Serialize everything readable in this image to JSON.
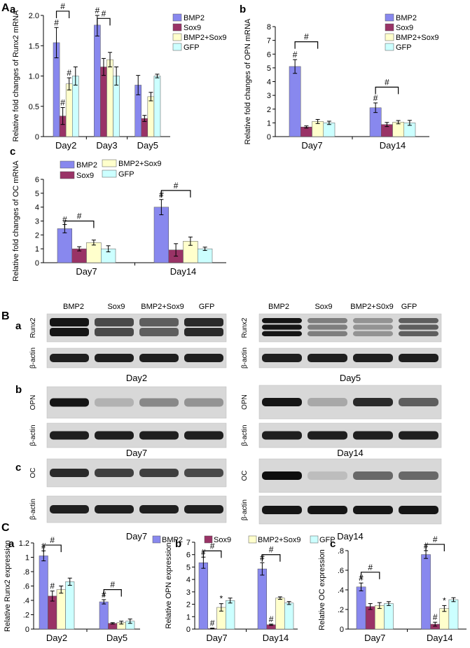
{
  "colors": {
    "BMP2": "#8888ee",
    "Sox9": "#993366",
    "BMP2+Sox9": "#ffffcc",
    "GFP": "#ccffff"
  },
  "section_labels": {
    "A": "A",
    "B": "B",
    "C": "C"
  },
  "chart_data": [
    {
      "id": "Aa",
      "panel": "a",
      "type": "bar",
      "ylabel": "Relative fold changes of Runx2 mRNA",
      "ylim": [
        0,
        2
      ],
      "yticks": [
        "0",
        "0.5",
        "1.0",
        "1.5",
        "2.0"
      ],
      "ytick_values": [
        0,
        0.5,
        1,
        1.5,
        2
      ],
      "categories": [
        "Day2",
        "Day3",
        "Day5"
      ],
      "series": [
        {
          "name": "BMP2",
          "values": [
            1.55,
            1.84,
            0.85
          ],
          "errors": [
            0.25,
            0.18,
            0.16
          ]
        },
        {
          "name": "Sox9",
          "values": [
            0.34,
            1.15,
            0.3
          ],
          "errors": [
            0.14,
            0.14,
            0.05
          ]
        },
        {
          "name": "BMP2+Sox9",
          "values": [
            0.87,
            1.27,
            0.66
          ],
          "errors": [
            0.1,
            0.12,
            0.07
          ]
        },
        {
          "name": "GFP",
          "values": [
            1.0,
            1.0,
            1.0
          ],
          "errors": [
            0.15,
            0.15,
            0.03
          ]
        }
      ],
      "annotations": [
        {
          "text": "#",
          "category": 0,
          "bar": 0
        },
        {
          "text": "#",
          "category": 0,
          "bar": 1
        },
        {
          "text": "#",
          "category": 0,
          "bar": 2
        },
        {
          "text": "#",
          "category": 1,
          "bar": 0
        }
      ],
      "brackets": [
        {
          "category": 0,
          "from": 0,
          "to": 2,
          "level": 2.07,
          "text": "#"
        },
        {
          "category": 1,
          "from": 0,
          "to": 2,
          "level": 1.95,
          "text": "#"
        }
      ],
      "legend": "right"
    },
    {
      "id": "Ab",
      "panel": "b",
      "type": "bar",
      "ylabel": "Relative fold changes of OPN mRNA",
      "ylim": [
        0,
        8
      ],
      "yticks": [
        "0",
        "1",
        "2",
        "3",
        "4",
        "5",
        "6",
        "7",
        "8"
      ],
      "ytick_values": [
        0,
        1,
        2,
        3,
        4,
        5,
        6,
        7,
        8
      ],
      "categories": [
        "Day7",
        "Day14"
      ],
      "series": [
        {
          "name": "BMP2",
          "values": [
            5.1,
            2.1
          ],
          "errors": [
            0.5,
            0.35
          ]
        },
        {
          "name": "Sox9",
          "values": [
            0.7,
            0.88
          ],
          "errors": [
            0.08,
            0.15
          ]
        },
        {
          "name": "BMP2+Sox9",
          "values": [
            1.1,
            1.05
          ],
          "errors": [
            0.15,
            0.12
          ]
        },
        {
          "name": "GFP",
          "values": [
            1.0,
            1.0
          ],
          "errors": [
            0.12,
            0.18
          ]
        }
      ],
      "annotations": [
        {
          "text": "#",
          "category": 0,
          "bar": 0
        },
        {
          "text": "#",
          "category": 1,
          "bar": 0
        }
      ],
      "brackets": [
        {
          "category": 0,
          "from": 0,
          "to": 2,
          "level": 6.9,
          "text": "#"
        },
        {
          "category": 1,
          "from": 0,
          "to": 2,
          "level": 3.6,
          "text": "#"
        }
      ],
      "legend": "top-right"
    },
    {
      "id": "Ac",
      "panel": "c",
      "type": "bar",
      "ylabel": "Relative fold changes of OC mRNA",
      "ylim": [
        0,
        6
      ],
      "yticks": [
        "0",
        "1",
        "2",
        "3",
        "4",
        "5",
        "6"
      ],
      "ytick_values": [
        0,
        1,
        2,
        3,
        4,
        5,
        6
      ],
      "categories": [
        "Day7",
        "Day14"
      ],
      "series": [
        {
          "name": "BMP2",
          "values": [
            2.45,
            4.0
          ],
          "errors": [
            0.3,
            0.55
          ]
        },
        {
          "name": "Sox9",
          "values": [
            1.0,
            0.92
          ],
          "errors": [
            0.15,
            0.45
          ]
        },
        {
          "name": "BMP2+Sox9",
          "values": [
            1.45,
            1.55
          ],
          "errors": [
            0.18,
            0.3
          ]
        },
        {
          "name": "GFP",
          "values": [
            1.0,
            1.0
          ],
          "errors": [
            0.22,
            0.12
          ]
        }
      ],
      "annotations": [
        {
          "text": "#",
          "category": 0,
          "bar": 0
        },
        {
          "text": "#",
          "category": 1,
          "bar": 0
        }
      ],
      "brackets": [
        {
          "category": 0,
          "from": 0,
          "to": 2,
          "level": 3.0,
          "text": "#"
        },
        {
          "category": 1,
          "from": 0,
          "to": 2,
          "level": 5.2,
          "text": "#"
        }
      ],
      "legend": "top-left"
    },
    {
      "id": "Ca",
      "panel": "a",
      "type": "bar",
      "ylabel": "Relative Runx2 expression",
      "ylim": [
        0,
        1.2
      ],
      "yticks": [
        "0",
        ".2",
        ".4",
        ".6",
        ".8",
        "1",
        "1.2"
      ],
      "ytick_values": [
        0,
        0.2,
        0.4,
        0.6,
        0.8,
        1.0,
        1.2
      ],
      "categories": [
        "Day2",
        "Day5"
      ],
      "series": [
        {
          "name": "BMP2",
          "values": [
            1.02,
            0.38
          ],
          "errors": [
            0.07,
            0.03
          ]
        },
        {
          "name": "Sox9",
          "values": [
            0.46,
            0.08
          ],
          "errors": [
            0.07,
            0.01
          ]
        },
        {
          "name": "BMP2+Sox9",
          "values": [
            0.55,
            0.09
          ],
          "errors": [
            0.05,
            0.02
          ]
        },
        {
          "name": "GFP",
          "values": [
            0.66,
            0.11
          ],
          "errors": [
            0.05,
            0.03
          ]
        }
      ],
      "annotations": [
        {
          "text": "#",
          "category": 0,
          "bar": 0
        },
        {
          "text": "#",
          "category": 0,
          "bar": 1
        },
        {
          "text": "#",
          "category": 1,
          "bar": 0
        }
      ],
      "brackets": [
        {
          "category": 0,
          "from": 0,
          "to": 2,
          "level": 1.17,
          "text": "#"
        },
        {
          "category": 1,
          "from": 0,
          "to": 2,
          "level": 0.55,
          "text": "#"
        }
      ],
      "legend": "top"
    },
    {
      "id": "Cb",
      "panel": "b",
      "type": "bar",
      "ylabel": "Relative OPN expression",
      "ylim": [
        0,
        7
      ],
      "yticks": [
        "0",
        "1",
        "2",
        "3",
        "4",
        "5",
        "6",
        "7"
      ],
      "ytick_values": [
        0,
        1,
        2,
        3,
        4,
        5,
        6,
        7
      ],
      "categories": [
        "Day7",
        "Day14"
      ],
      "series": [
        {
          "name": "BMP2",
          "values": [
            5.35,
            4.85
          ],
          "errors": [
            0.45,
            0.5
          ]
        },
        {
          "name": "Sox9",
          "values": [
            0.05,
            0.35
          ],
          "errors": [
            0.03,
            0.05
          ]
        },
        {
          "name": "BMP2+Sox9",
          "values": [
            1.75,
            2.5
          ],
          "errors": [
            0.3,
            0.1
          ]
        },
        {
          "name": "GFP",
          "values": [
            2.3,
            2.1
          ],
          "errors": [
            0.2,
            0.12
          ]
        }
      ],
      "annotations": [
        {
          "text": "#",
          "category": 0,
          "bar": 0
        },
        {
          "text": "#",
          "category": 0,
          "bar": 1
        },
        {
          "text": "*",
          "category": 0,
          "bar": 2
        },
        {
          "text": "#",
          "category": 1,
          "bar": 0
        },
        {
          "text": "#",
          "category": 1,
          "bar": 1
        }
      ],
      "brackets": [
        {
          "category": 0,
          "from": 0,
          "to": 2,
          "level": 6.3,
          "text": "#"
        },
        {
          "category": 1,
          "from": 0,
          "to": 2,
          "level": 6.0,
          "text": "#"
        }
      ],
      "legend": "top"
    },
    {
      "id": "Cc",
      "panel": "c",
      "type": "bar",
      "ylabel": "Relative OC expression",
      "ylim": [
        0,
        0.8
      ],
      "yticks": [
        "0",
        ".2",
        ".4",
        ".6",
        ".8"
      ],
      "ytick_values": [
        0,
        0.2,
        0.4,
        0.6,
        0.8
      ],
      "categories": [
        "Day7",
        "Day14"
      ],
      "series": [
        {
          "name": "BMP2",
          "values": [
            0.43,
            0.76
          ],
          "errors": [
            0.04,
            0.04
          ]
        },
        {
          "name": "Sox9",
          "values": [
            0.23,
            0.05
          ],
          "errors": [
            0.03,
            0.02
          ]
        },
        {
          "name": "BMP2+Sox9",
          "values": [
            0.24,
            0.21
          ],
          "errors": [
            0.03,
            0.03
          ]
        },
        {
          "name": "GFP",
          "values": [
            0.26,
            0.3
          ],
          "errors": [
            0.02,
            0.02
          ]
        }
      ],
      "annotations": [
        {
          "text": "#",
          "category": 0,
          "bar": 0
        },
        {
          "text": "#",
          "category": 1,
          "bar": 0
        },
        {
          "text": "#",
          "category": 1,
          "bar": 1
        },
        {
          "text": "*",
          "category": 1,
          "bar": 2
        }
      ],
      "brackets": [
        {
          "category": 0,
          "from": 0,
          "to": 2,
          "level": 0.58,
          "text": "#"
        },
        {
          "category": 1,
          "from": 0,
          "to": 2,
          "level": 0.87,
          "text": "#"
        }
      ],
      "legend": "top"
    }
  ],
  "shared_legend_C": [
    "BMP2",
    "Sox9",
    "BMP2+Sox9",
    "GFP"
  ],
  "blots": [
    {
      "id": "Ba-left",
      "panel": "a",
      "header": [
        "BMP2",
        "Sox9",
        "BMP2+Sox9",
        "GFP"
      ],
      "rows": [
        {
          "label": "Runx2",
          "intensity": [
            0.95,
            0.7,
            0.6,
            0.85
          ],
          "bands": 2
        },
        {
          "label": "β-actin",
          "intensity": [
            0.9,
            0.9,
            0.9,
            0.9
          ],
          "bands": 1
        }
      ],
      "day": "Day2"
    },
    {
      "id": "Ba-right",
      "panel": "",
      "header": [
        "BMP2",
        "Sox9",
        "BMP2+S0x9",
        "GFP"
      ],
      "rows": [
        {
          "label": "Runx2",
          "intensity": [
            0.95,
            0.45,
            0.35,
            0.6
          ],
          "bands": 3
        },
        {
          "label": "β-actin",
          "intensity": [
            0.9,
            0.9,
            0.9,
            0.9
          ],
          "bands": 1
        }
      ],
      "day": "Day5"
    },
    {
      "id": "Bb-left",
      "panel": "b",
      "header": [],
      "rows": [
        {
          "label": "OPN",
          "intensity": [
            0.95,
            0.2,
            0.4,
            0.35
          ],
          "bands": 1
        },
        {
          "label": "β-actin",
          "intensity": [
            0.9,
            0.9,
            0.9,
            0.9
          ],
          "bands": 1
        }
      ],
      "day": "Day7"
    },
    {
      "id": "Bb-right",
      "panel": "",
      "header": [],
      "rows": [
        {
          "label": "OPN",
          "intensity": [
            0.95,
            0.25,
            0.85,
            0.6
          ],
          "bands": 1
        },
        {
          "label": "β-actin",
          "intensity": [
            0.9,
            0.9,
            0.9,
            0.9
          ],
          "bands": 1
        }
      ],
      "day": "Day14"
    },
    {
      "id": "Bc-left",
      "panel": "c",
      "header": [],
      "rows": [
        {
          "label": "OC",
          "intensity": [
            0.85,
            0.75,
            0.75,
            0.7
          ],
          "bands": 1
        },
        {
          "label": "β-actin",
          "intensity": [
            0.9,
            0.9,
            0.9,
            0.9
          ],
          "bands": 1
        }
      ],
      "day": "Day7"
    },
    {
      "id": "Bc-right",
      "panel": "",
      "header": [],
      "rows": [
        {
          "label": "OC",
          "intensity": [
            0.98,
            0.15,
            0.55,
            0.55
          ],
          "bands": 1
        },
        {
          "label": "β-actin",
          "intensity": [
            0.95,
            0.95,
            0.95,
            0.95
          ],
          "bands": 1
        }
      ],
      "day": "Day14"
    }
  ]
}
